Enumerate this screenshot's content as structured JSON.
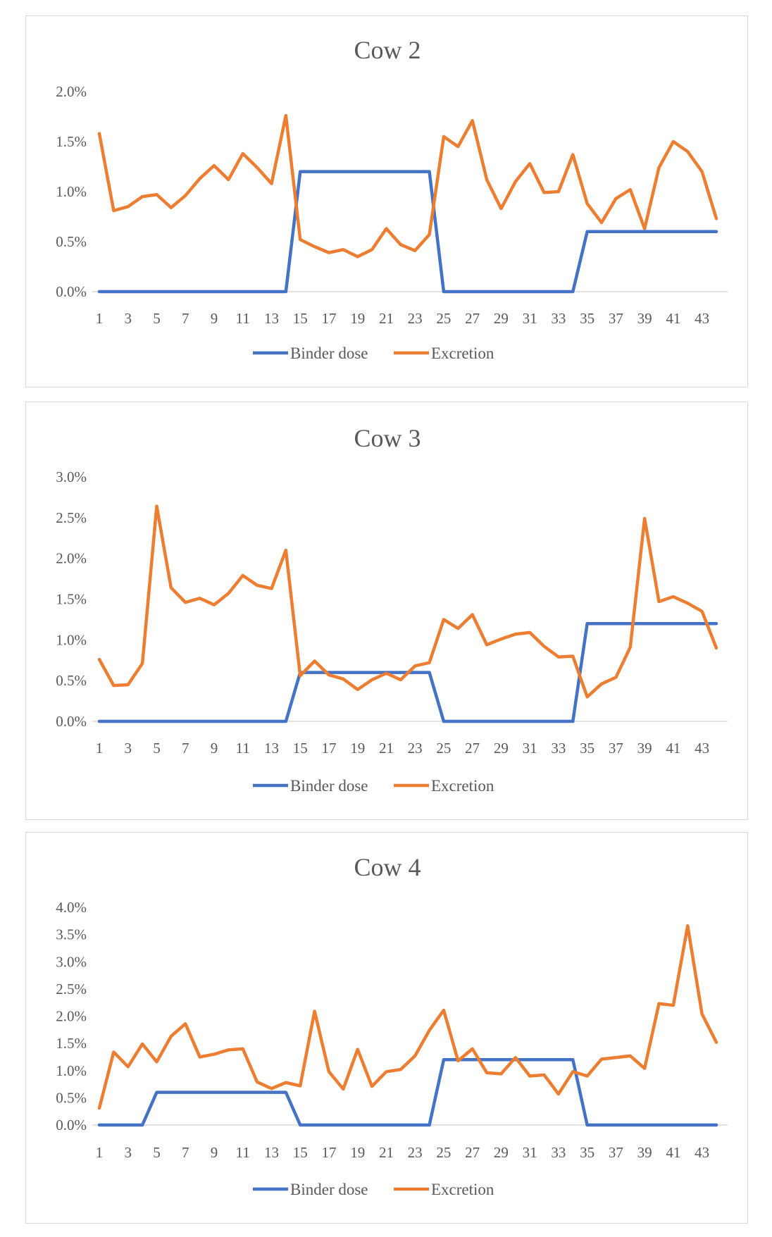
{
  "chart_data": [
    {
      "type": "line",
      "title": "Cow 2",
      "x": [
        1,
        2,
        3,
        4,
        5,
        6,
        7,
        8,
        9,
        10,
        11,
        12,
        13,
        14,
        15,
        16,
        17,
        18,
        19,
        20,
        21,
        22,
        23,
        24,
        25,
        26,
        27,
        28,
        29,
        30,
        31,
        32,
        33,
        34,
        35,
        36,
        37,
        38,
        39,
        40,
        41,
        42,
        43,
        44
      ],
      "x_tick_labels": [
        "1",
        "3",
        "5",
        "7",
        "9",
        "11",
        "13",
        "15",
        "17",
        "19",
        "21",
        "23",
        "25",
        "27",
        "29",
        "31",
        "33",
        "35",
        "37",
        "39",
        "41",
        "43"
      ],
      "y_tick_labels": [
        "0.0%",
        "0.5%",
        "1.0%",
        "1.5%",
        "2.0%"
      ],
      "ylim": [
        0,
        2.0
      ],
      "y_unit": "%",
      "grid": false,
      "legend_position": "bottom",
      "series": [
        {
          "name": "Binder dose",
          "color": "#4472c4",
          "values": [
            0,
            0,
            0,
            0,
            0,
            0,
            0,
            0,
            0,
            0,
            0,
            0,
            0,
            0,
            1.2,
            1.2,
            1.2,
            1.2,
            1.2,
            1.2,
            1.2,
            1.2,
            1.2,
            1.2,
            0,
            0,
            0,
            0,
            0,
            0,
            0,
            0,
            0,
            0,
            0.6,
            0.6,
            0.6,
            0.6,
            0.6,
            0.6,
            0.6,
            0.6,
            0.6,
            0.6
          ]
        },
        {
          "name": "Excretion",
          "color": "#ed7d31",
          "values": [
            1.58,
            0.81,
            0.85,
            0.95,
            0.97,
            0.84,
            0.96,
            1.13,
            1.26,
            1.12,
            1.38,
            1.24,
            1.08,
            1.76,
            0.52,
            0.45,
            0.39,
            0.42,
            0.35,
            0.42,
            0.63,
            0.47,
            0.41,
            0.57,
            1.55,
            1.45,
            1.71,
            1.12,
            0.83,
            1.1,
            1.28,
            0.99,
            1.0,
            1.37,
            0.88,
            0.69,
            0.93,
            1.02,
            0.63,
            1.24,
            1.5,
            1.4,
            1.2,
            0.73
          ]
        }
      ]
    },
    {
      "type": "line",
      "title": "Cow 3",
      "x": [
        1,
        2,
        3,
        4,
        5,
        6,
        7,
        8,
        9,
        10,
        11,
        12,
        13,
        14,
        15,
        16,
        17,
        18,
        19,
        20,
        21,
        22,
        23,
        24,
        25,
        26,
        27,
        28,
        29,
        30,
        31,
        32,
        33,
        34,
        35,
        36,
        37,
        38,
        39,
        40,
        41,
        42,
        43,
        44
      ],
      "x_tick_labels": [
        "1",
        "3",
        "5",
        "7",
        "9",
        "11",
        "13",
        "15",
        "17",
        "19",
        "21",
        "23",
        "25",
        "27",
        "29",
        "31",
        "33",
        "35",
        "37",
        "39",
        "41",
        "43"
      ],
      "y_tick_labels": [
        "0.0%",
        "0.5%",
        "1.0%",
        "1.5%",
        "2.0%",
        "2.5%",
        "3.0%"
      ],
      "ylim": [
        0,
        3.0
      ],
      "y_unit": "%",
      "grid": false,
      "legend_position": "bottom",
      "series": [
        {
          "name": "Binder dose",
          "color": "#4472c4",
          "values": [
            0,
            0,
            0,
            0,
            0,
            0,
            0,
            0,
            0,
            0,
            0,
            0,
            0,
            0,
            0.6,
            0.6,
            0.6,
            0.6,
            0.6,
            0.6,
            0.6,
            0.6,
            0.6,
            0.6,
            0,
            0,
            0,
            0,
            0,
            0,
            0,
            0,
            0,
            0,
            1.2,
            1.2,
            1.2,
            1.2,
            1.2,
            1.2,
            1.2,
            1.2,
            1.2,
            1.2
          ]
        },
        {
          "name": "Excretion",
          "color": "#ed7d31",
          "values": [
            0.76,
            0.44,
            0.45,
            0.71,
            2.64,
            1.64,
            1.46,
            1.51,
            1.43,
            1.57,
            1.79,
            1.67,
            1.63,
            2.1,
            0.56,
            0.74,
            0.57,
            0.52,
            0.39,
            0.51,
            0.59,
            0.51,
            0.68,
            0.72,
            1.25,
            1.14,
            1.31,
            0.94,
            1.01,
            1.07,
            1.09,
            0.92,
            0.79,
            0.8,
            0.3,
            0.46,
            0.54,
            0.91,
            2.49,
            1.47,
            1.53,
            1.45,
            1.35,
            0.9
          ]
        }
      ]
    },
    {
      "type": "line",
      "title": "Cow 4",
      "x": [
        1,
        2,
        3,
        4,
        5,
        6,
        7,
        8,
        9,
        10,
        11,
        12,
        13,
        14,
        15,
        16,
        17,
        18,
        19,
        20,
        21,
        22,
        23,
        24,
        25,
        26,
        27,
        28,
        29,
        30,
        31,
        32,
        33,
        34,
        35,
        36,
        37,
        38,
        39,
        40,
        41,
        42,
        43,
        44
      ],
      "x_tick_labels": [
        "1",
        "3",
        "5",
        "7",
        "9",
        "11",
        "13",
        "15",
        "17",
        "19",
        "21",
        "23",
        "25",
        "27",
        "29",
        "31",
        "33",
        "35",
        "37",
        "39",
        "41",
        "43"
      ],
      "y_tick_labels": [
        "0.0%",
        "0.5%",
        "1.0%",
        "1.5%",
        "2.0%",
        "2.5%",
        "3.0%",
        "3.5%",
        "4.0%"
      ],
      "ylim": [
        0,
        4.0
      ],
      "y_unit": "%",
      "grid": false,
      "legend_position": "bottom",
      "series": [
        {
          "name": "Binder dose",
          "color": "#4472c4",
          "values": [
            0,
            0,
            0,
            0,
            0.6,
            0.6,
            0.6,
            0.6,
            0.6,
            0.6,
            0.6,
            0.6,
            0.6,
            0.6,
            0,
            0,
            0,
            0,
            0,
            0,
            0,
            0,
            0,
            0,
            1.2,
            1.2,
            1.2,
            1.2,
            1.2,
            1.2,
            1.2,
            1.2,
            1.2,
            1.2,
            0,
            0,
            0,
            0,
            0,
            0,
            0,
            0,
            0,
            0
          ]
        },
        {
          "name": "Excretion",
          "color": "#ed7d31",
          "values": [
            0.31,
            1.34,
            1.07,
            1.49,
            1.16,
            1.63,
            1.86,
            1.25,
            1.3,
            1.38,
            1.4,
            0.79,
            0.67,
            0.78,
            0.72,
            2.09,
            0.98,
            0.66,
            1.39,
            0.71,
            0.98,
            1.02,
            1.27,
            1.74,
            2.11,
            1.18,
            1.4,
            0.96,
            0.94,
            1.24,
            0.9,
            0.92,
            0.57,
            0.98,
            0.9,
            1.21,
            1.24,
            1.27,
            1.04,
            2.23,
            2.2,
            3.66,
            2.04,
            1.52
          ]
        }
      ]
    }
  ]
}
